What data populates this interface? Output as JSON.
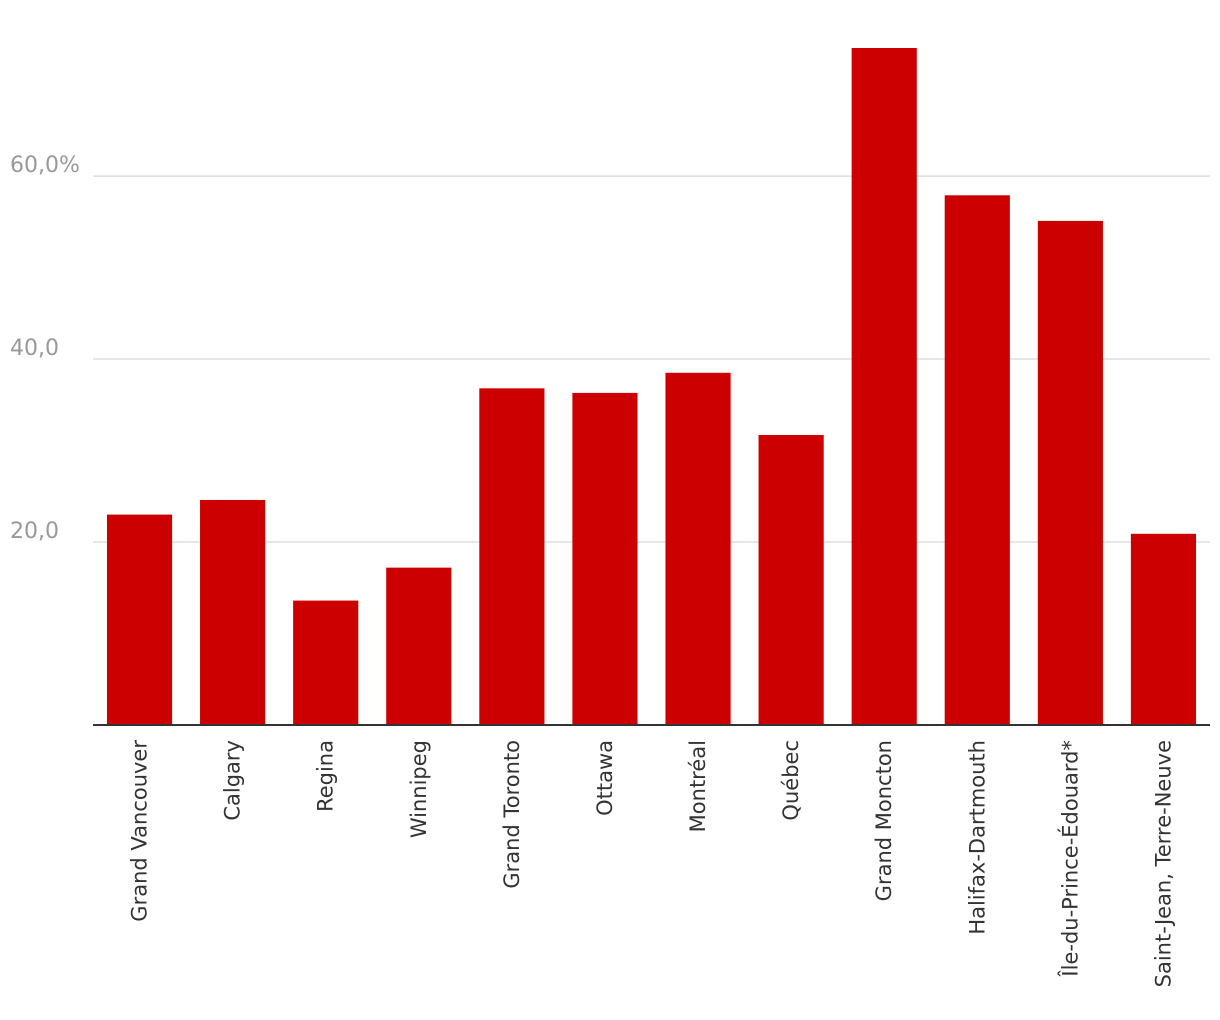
{
  "chart_data": {
    "type": "bar",
    "categories": [
      "Grand Vancouver",
      "Calgary",
      "Regina",
      "Winnipeg",
      "Grand Toronto",
      "Ottawa",
      "Montréal",
      "Québec",
      "Grand Moncton",
      "Halifax-Dartmouth",
      "Île-du-Prince-Édouard*",
      "Saint-Jean, Terre-Neuve"
    ],
    "values": [
      23.0,
      24.6,
      13.6,
      17.2,
      36.8,
      36.3,
      38.5,
      31.7,
      74.0,
      57.9,
      55.1,
      20.9
    ],
    "yticks": [
      {
        "value": 20,
        "label": "20,0"
      },
      {
        "value": 40,
        "label": "40,0"
      },
      {
        "value": 60,
        "label": "60,0%"
      }
    ],
    "ylim": [
      0,
      74
    ],
    "grid": true,
    "bar_color": "#cc0000",
    "title": "",
    "xlabel": "",
    "ylabel": ""
  }
}
